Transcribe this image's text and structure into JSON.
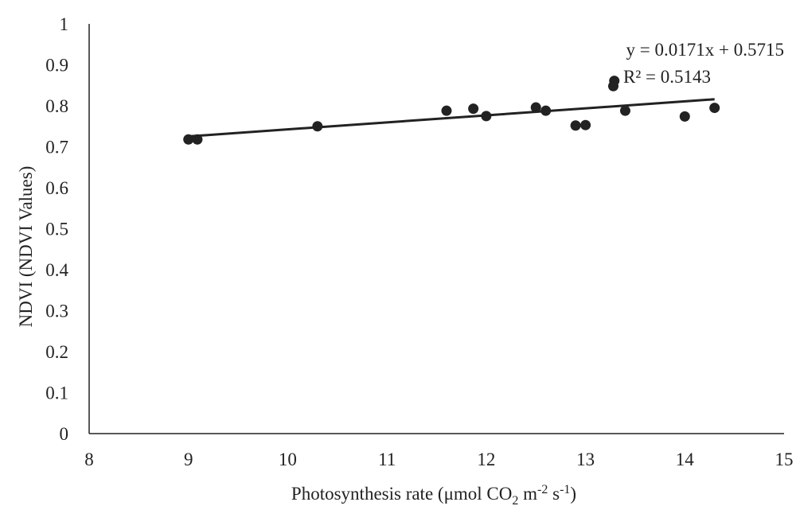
{
  "chart_data": {
    "type": "scatter",
    "title": "",
    "xlabel": {
      "main": "Photosynthesis rate (μmol CO",
      "sub": "2",
      "mid": " m",
      "sup1": "-2",
      "mid2": " s",
      "sup2": "-1",
      "end": ")"
    },
    "ylabel": "NDVI (NDVI Values)",
    "xlim": [
      8,
      15
    ],
    "ylim": [
      0,
      1
    ],
    "x_ticks": [
      "8",
      "9",
      "10",
      "11",
      "12",
      "13",
      "14",
      "15"
    ],
    "y_ticks": [
      "0",
      "0.1",
      "0.2",
      "0.3",
      "0.4",
      "0.5",
      "0.6",
      "0.7",
      "0.8",
      "0.9",
      "1"
    ],
    "x_tick_values": [
      8,
      9,
      10,
      11,
      12,
      13,
      14,
      15
    ],
    "y_tick_values": [
      0,
      0.1,
      0.2,
      0.3,
      0.4,
      0.5,
      0.6,
      0.7,
      0.8,
      0.9,
      1
    ],
    "grid": false,
    "legend": "none",
    "series": [
      {
        "points": [
          {
            "x": 9.0,
            "y": 0.718
          },
          {
            "x": 9.09,
            "y": 0.718
          },
          {
            "x": 10.3,
            "y": 0.75
          },
          {
            "x": 11.6,
            "y": 0.788
          },
          {
            "x": 11.87,
            "y": 0.793
          },
          {
            "x": 12.0,
            "y": 0.775
          },
          {
            "x": 12.5,
            "y": 0.796
          },
          {
            "x": 12.6,
            "y": 0.788
          },
          {
            "x": 12.9,
            "y": 0.752
          },
          {
            "x": 13.0,
            "y": 0.753
          },
          {
            "x": 13.28,
            "y": 0.848
          },
          {
            "x": 13.29,
            "y": 0.861
          },
          {
            "x": 13.4,
            "y": 0.788
          },
          {
            "x": 14.0,
            "y": 0.774
          },
          {
            "x": 14.3,
            "y": 0.795
          }
        ],
        "color": "#222222"
      }
    ],
    "trendline": {
      "slope": 0.0171,
      "intercept": 0.5715,
      "x_range": [
        9.0,
        14.3
      ],
      "color": "#222222"
    },
    "annotations": {
      "equation": "y = 0.0171x + 0.5715",
      "r_squared": "R² = 0.5143"
    }
  }
}
